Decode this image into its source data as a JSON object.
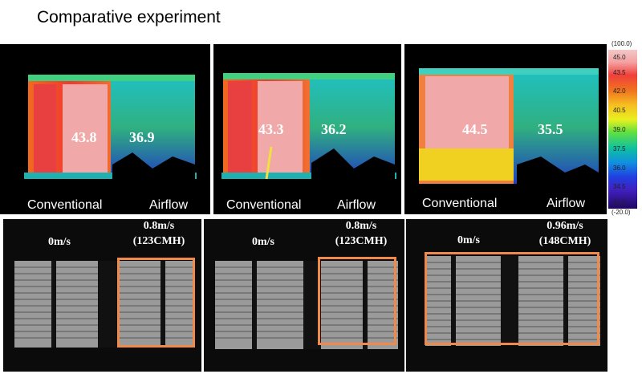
{
  "title": "Comparative experiment",
  "thermal": [
    {
      "left_value": "43.8",
      "right_value": "36.9",
      "left_label": "Conventional",
      "right_label": "Airflow"
    },
    {
      "left_value": "43.3",
      "right_value": "36.2",
      "left_label": "Conventional",
      "right_label": "Airflow"
    },
    {
      "left_value": "44.5",
      "right_value": "35.5",
      "left_label": "Conventional",
      "right_label": "Airflow"
    }
  ],
  "scale": {
    "max": "(100.0)",
    "min": "(-20.0)",
    "ticks": [
      "45.0",
      "43.5",
      "42.0",
      "40.5",
      "39.0",
      "37.5",
      "36.0",
      "34.5",
      "33.0"
    ]
  },
  "photos": [
    {
      "left_speed": "0m/s",
      "right_speed_line1": "0.8m/s",
      "right_speed_line2": "(123CMH)"
    },
    {
      "left_speed": "0m/s",
      "right_speed_line1": "0.8m/s",
      "right_speed_line2": "(123CMH)"
    },
    {
      "left_speed": "0m/s",
      "right_speed_line1": "0.96m/s",
      "right_speed_line2": "(148CMH)"
    }
  ],
  "colors": {
    "highlight": "#f08a4b"
  }
}
